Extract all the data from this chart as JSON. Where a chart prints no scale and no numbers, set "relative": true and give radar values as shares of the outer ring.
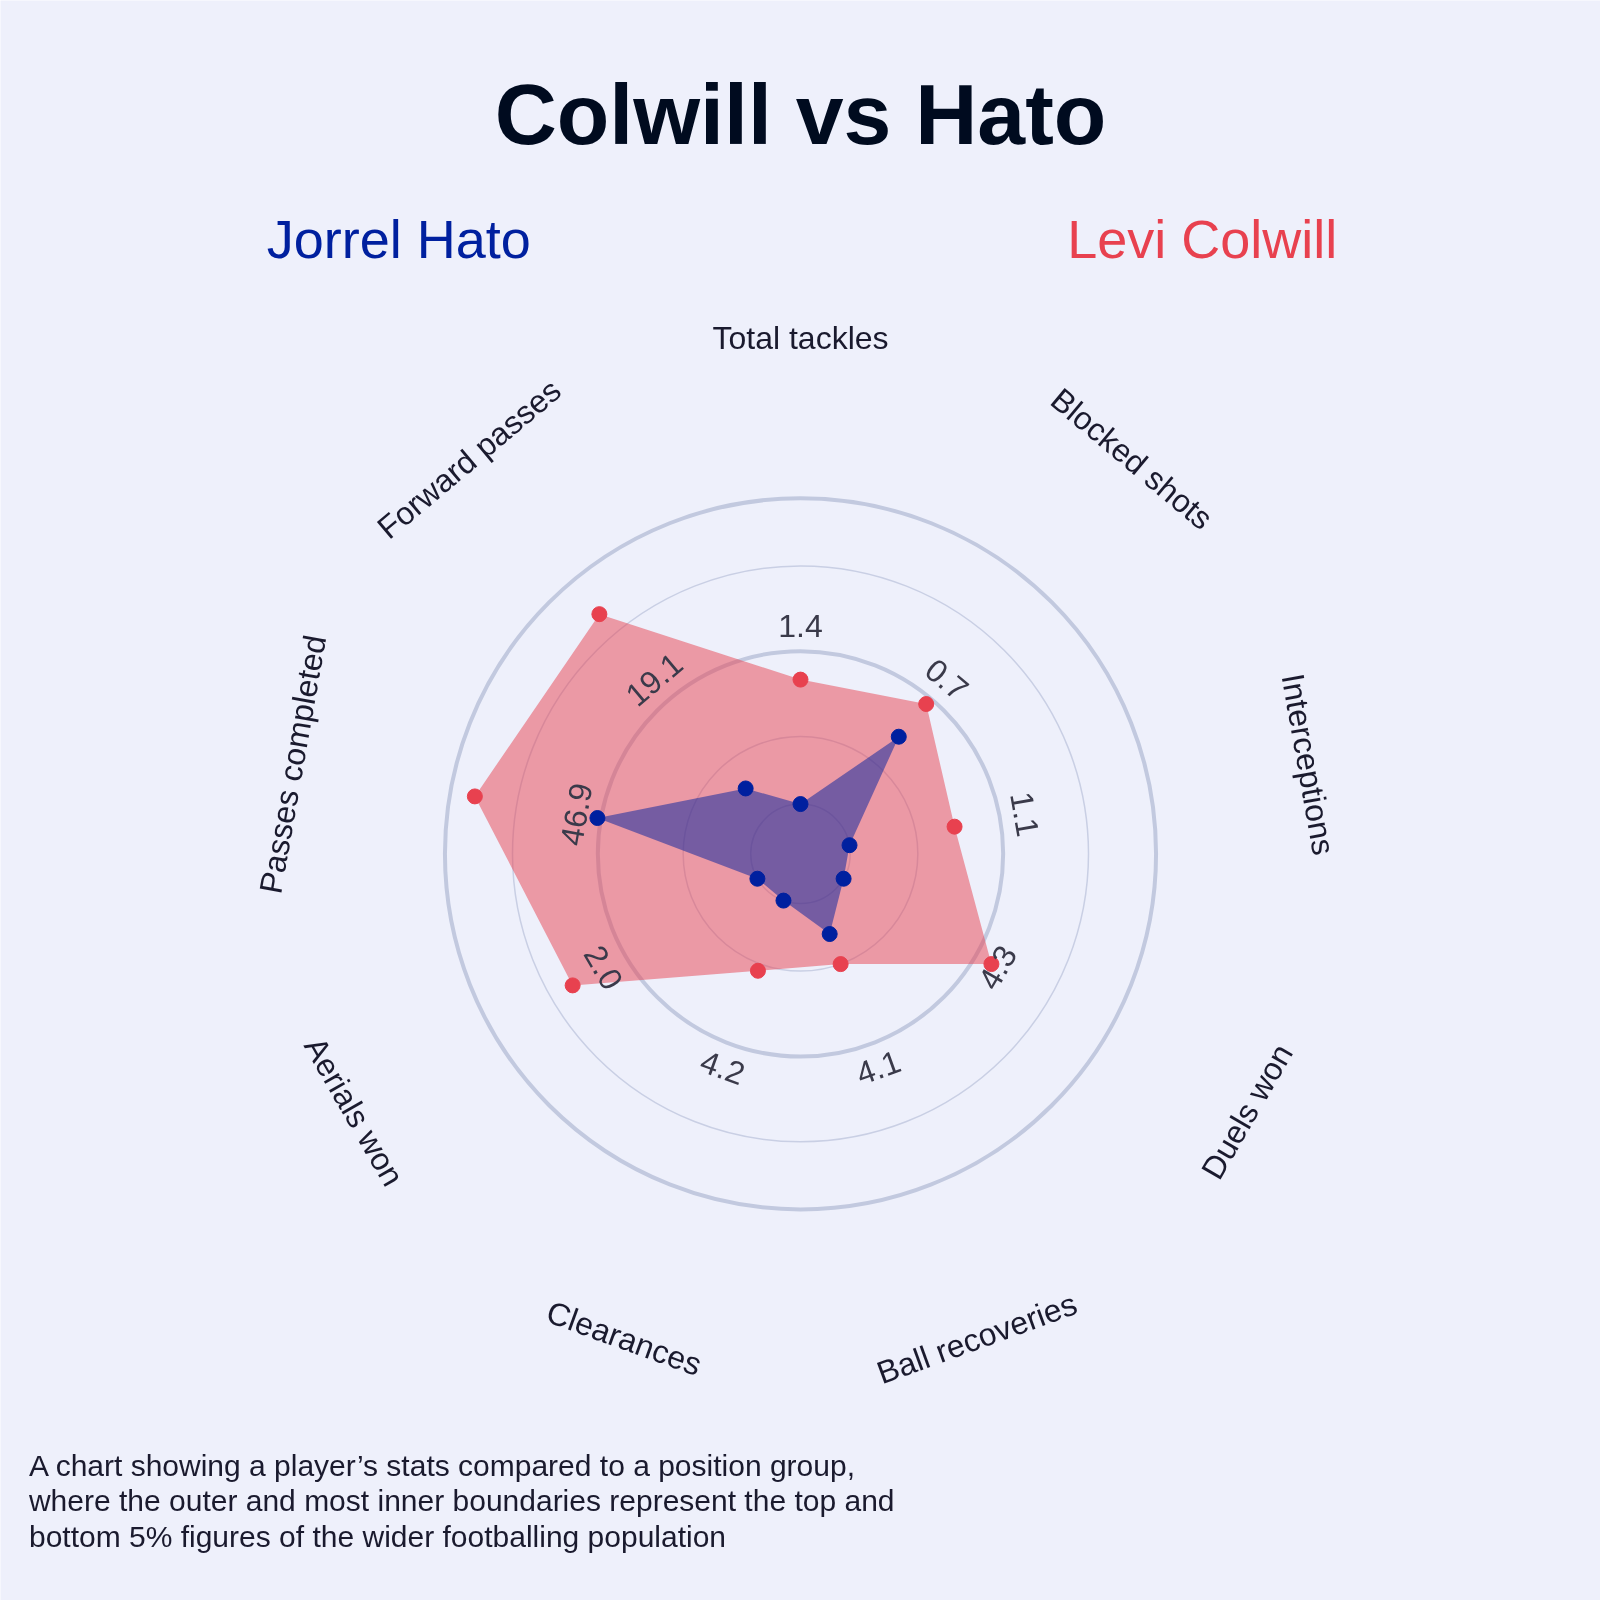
{
  "chart_data": {
    "type": "radar",
    "title": "Colwill vs Hato",
    "relative": true,
    "grid": true,
    "marker": "circle",
    "legend": false,
    "categories": [
      "Total tackles",
      "Blocked shots",
      "Interceptions",
      "Duels won",
      "Ball recoveries",
      "Clearances",
      "Aerials won",
      "Passes completed",
      "Forward passes"
    ],
    "series": [
      {
        "name": "Levi Colwill",
        "color": "#e8414f",
        "values": [
          0.49,
          0.55,
          0.44,
          0.62,
          0.33,
          0.35,
          0.74,
          0.93,
          0.88
        ]
      },
      {
        "name": "Jorrel Hato",
        "color": "#00209f",
        "values": [
          0.14,
          0.43,
          0.14,
          0.14,
          0.24,
          0.14,
          0.14,
          0.58,
          0.24
        ]
      }
    ],
    "annotations": [
      "1.4",
      "0.7",
      "1.1",
      "4.3",
      "4.1",
      "4.2",
      "2.0",
      "46.9",
      "19.1",
      "A chart showing a player’s stats compared to a position group,  where the outer and most inner boundaries represent the top and bottom 5% figures of the wider footballing population"
    ]
  }
}
